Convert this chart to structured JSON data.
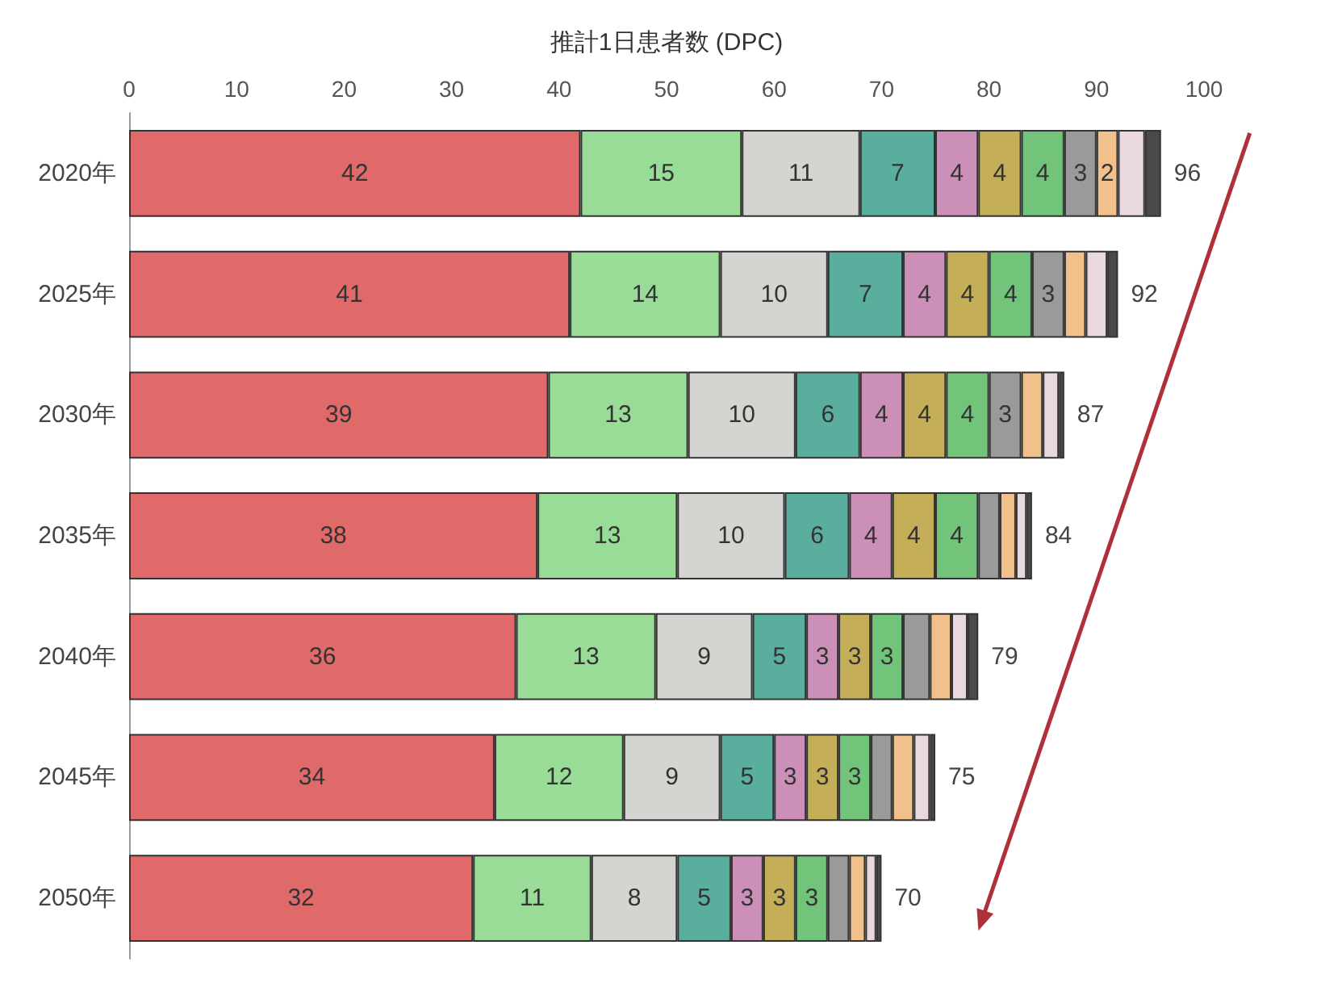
{
  "chart_data": {
    "type": "bar",
    "orientation": "horizontal",
    "stacked": true,
    "xlabel": "推計1日患者数 (DPC)",
    "categories": [
      "2020年",
      "2025年",
      "2030年",
      "2035年",
      "2040年",
      "2045年",
      "2050年"
    ],
    "xlim": [
      0,
      100
    ],
    "xticks": [
      0,
      10,
      20,
      30,
      40,
      50,
      60,
      70,
      80,
      90,
      100
    ],
    "series": [
      {
        "color": "#e06a6a",
        "values": [
          42,
          41,
          39,
          38,
          36,
          34,
          32
        ],
        "value_labels": [
          "42",
          "41",
          "39",
          "38",
          "36",
          "34",
          "32"
        ]
      },
      {
        "color": "#98dc98",
        "values": [
          15,
          14,
          13,
          13,
          13,
          12,
          11
        ],
        "value_labels": [
          "15",
          "14",
          "13",
          "13",
          "13",
          "12",
          "11"
        ]
      },
      {
        "color": "#d4d4d0",
        "values": [
          11,
          10,
          10,
          10,
          9,
          9,
          8
        ],
        "value_labels": [
          "11",
          "10",
          "10",
          "10",
          "9",
          "9",
          "8"
        ]
      },
      {
        "color": "#5aae9e",
        "values": [
          7,
          7,
          6,
          6,
          5,
          5,
          5
        ],
        "value_labels": [
          "7",
          "7",
          "6",
          "6",
          "5",
          "5",
          "5"
        ]
      },
      {
        "color": "#cc90b8",
        "values": [
          4,
          4,
          4,
          4,
          3,
          3,
          3
        ],
        "value_labels": [
          "4",
          "4",
          "4",
          "4",
          "3",
          "3",
          "3"
        ]
      },
      {
        "color": "#c4ae58",
        "values": [
          4,
          4,
          4,
          4,
          3,
          3,
          3
        ],
        "value_labels": [
          "4",
          "4",
          "4",
          "4",
          "3",
          "3",
          "3"
        ]
      },
      {
        "color": "#72c47a",
        "values": [
          4,
          4,
          4,
          4,
          3,
          3,
          3
        ],
        "value_labels": [
          "4",
          "4",
          "4",
          "4",
          "3",
          "3",
          "3"
        ]
      },
      {
        "color": "#9a9a9a",
        "values": [
          3,
          3,
          3,
          2,
          2.5,
          2,
          2
        ],
        "value_labels": [
          "3",
          "3",
          "3",
          null,
          null,
          null,
          null
        ]
      },
      {
        "color": "#f2c08a",
        "values": [
          2,
          2,
          2,
          1.5,
          2,
          2,
          1.5
        ],
        "value_labels": [
          "2",
          null,
          null,
          null,
          null,
          null,
          null
        ]
      },
      {
        "color": "#ead8e0",
        "values": [
          2.5,
          2,
          1.5,
          1,
          1.5,
          1.5,
          1
        ]
      },
      {
        "color": "#4a4a4a",
        "values": [
          1.5,
          1,
          0.5,
          0.5,
          1,
          0.5,
          0.5
        ]
      }
    ],
    "totals": [
      "96",
      "92",
      "87",
      "84",
      "79",
      "75",
      "70"
    ]
  }
}
